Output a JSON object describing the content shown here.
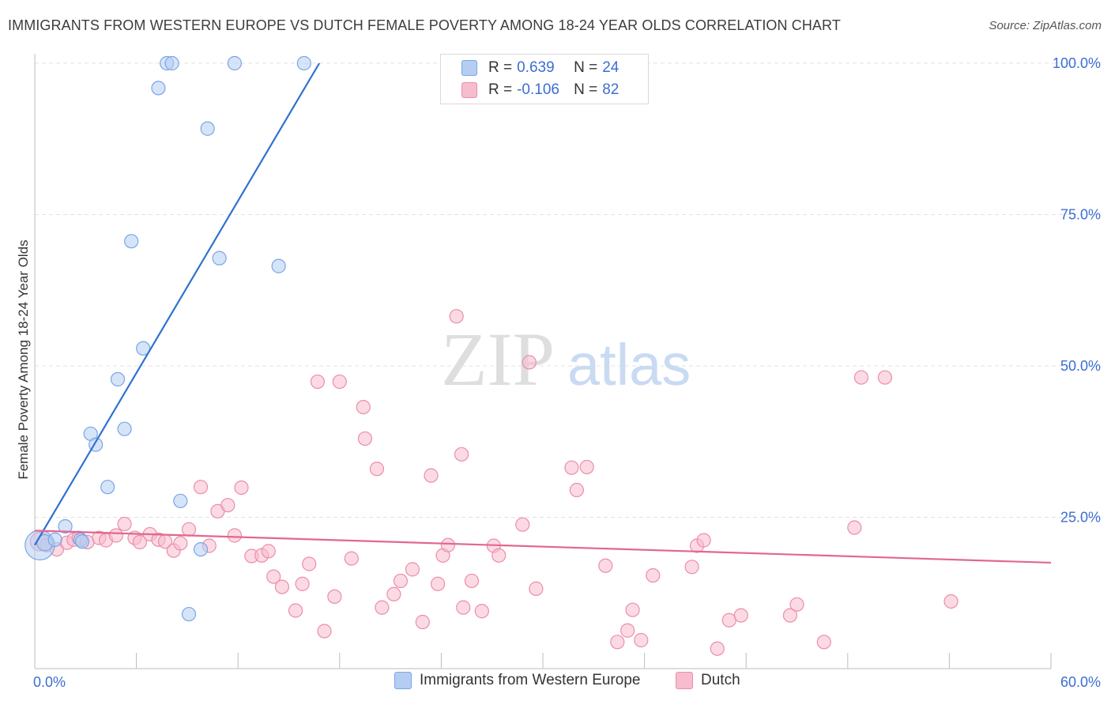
{
  "title": "IMMIGRANTS FROM WESTERN EUROPE VS DUTCH FEMALE POVERTY AMONG 18-24 YEAR OLDS CORRELATION CHART",
  "source": "Source: ZipAtlas.com",
  "watermark": {
    "zip": "ZIP",
    "atlas": "atlas"
  },
  "legend": {
    "series1": {
      "r_label": "R =",
      "r_value": "0.639",
      "n_label": "N =",
      "n_value": "24"
    },
    "series2": {
      "r_label": "R =",
      "r_value": "-0.106",
      "n_label": "N =",
      "n_value": "82"
    }
  },
  "colors": {
    "blue_fill": "#b5cdf3",
    "blue_stroke": "#7aa5e6",
    "blue_line": "#2f72cf",
    "pink_fill": "#f7bccd",
    "pink_stroke": "#ec8daa",
    "pink_line": "#e2678f",
    "axis_text": "#3b6fd0"
  },
  "chart_data": {
    "type": "scatter",
    "title": "IMMIGRANTS FROM WESTERN EUROPE VS DUTCH FEMALE POVERTY AMONG 18-24 YEAR OLDS CORRELATION CHART",
    "xlabel": "",
    "ylabel": "Female Poverty Among 18-24 Year Olds",
    "xlim": [
      0,
      60
    ],
    "ylim": [
      0,
      100
    ],
    "x_tick_labels": [
      "0.0%",
      "60.0%"
    ],
    "y_ticks": [
      {
        "value": 25,
        "label": "25.0%"
      },
      {
        "value": 50,
        "label": "50.0%"
      },
      {
        "value": 75,
        "label": "75.0%"
      },
      {
        "value": 100,
        "label": "100.0%"
      }
    ],
    "series": [
      {
        "name": "Immigrants from Western Europe",
        "color": "blue",
        "trend": {
          "x0": 0.0,
          "y0": 20.4,
          "x1": 16.8,
          "y1": 100.0
        },
        "points": [
          [
            0.3,
            20.4,
            22
          ],
          [
            0.6,
            20.8,
            12
          ],
          [
            1.2,
            21.3,
            10
          ],
          [
            1.8,
            23.5,
            10
          ],
          [
            2.7,
            21.3,
            10
          ],
          [
            2.8,
            21.0,
            10
          ],
          [
            3.3,
            38.8,
            10
          ],
          [
            3.6,
            37.0,
            10
          ],
          [
            4.3,
            30.0,
            10
          ],
          [
            4.9,
            47.8,
            10
          ],
          [
            5.3,
            39.6,
            10
          ],
          [
            5.7,
            70.6,
            10
          ],
          [
            6.4,
            52.9,
            10
          ],
          [
            7.3,
            95.9,
            10
          ],
          [
            7.8,
            100.0,
            10
          ],
          [
            8.1,
            100.0,
            10
          ],
          [
            8.6,
            27.7,
            10
          ],
          [
            9.1,
            9.0,
            10
          ],
          [
            9.8,
            19.7,
            10
          ],
          [
            10.2,
            89.2,
            10
          ],
          [
            10.9,
            67.8,
            10
          ],
          [
            11.8,
            100.0,
            10
          ],
          [
            14.4,
            66.5,
            10
          ],
          [
            15.9,
            100.0,
            10
          ]
        ]
      },
      {
        "name": "Dutch",
        "color": "pink",
        "trend": {
          "x0": 0.0,
          "y0": 22.8,
          "x1": 60.0,
          "y1": 17.5
        },
        "points": [
          [
            0.3,
            21.0,
            14
          ],
          [
            0.7,
            20.4,
            10
          ],
          [
            1.3,
            19.7,
            10
          ],
          [
            1.9,
            20.8,
            10
          ],
          [
            2.3,
            21.3,
            10
          ],
          [
            2.6,
            21.6,
            10
          ],
          [
            3.1,
            20.9,
            10
          ],
          [
            3.8,
            21.6,
            10
          ],
          [
            4.2,
            21.2,
            10
          ],
          [
            4.8,
            22.0,
            10
          ],
          [
            5.3,
            23.9,
            10
          ],
          [
            5.9,
            21.6,
            10
          ],
          [
            6.2,
            20.9,
            10
          ],
          [
            6.8,
            22.2,
            10
          ],
          [
            7.3,
            21.3,
            10
          ],
          [
            7.7,
            21.0,
            10
          ],
          [
            8.2,
            19.5,
            10
          ],
          [
            8.6,
            20.7,
            10
          ],
          [
            9.1,
            23.0,
            10
          ],
          [
            9.8,
            30.0,
            10
          ],
          [
            10.3,
            20.3,
            10
          ],
          [
            10.8,
            26.0,
            10
          ],
          [
            11.4,
            27.0,
            10
          ],
          [
            11.8,
            22.0,
            10
          ],
          [
            12.2,
            29.9,
            10
          ],
          [
            12.8,
            18.6,
            10
          ],
          [
            13.4,
            18.7,
            10
          ],
          [
            13.8,
            19.4,
            10
          ],
          [
            14.1,
            15.2,
            10
          ],
          [
            14.6,
            13.5,
            10
          ],
          [
            15.4,
            9.6,
            10
          ],
          [
            15.8,
            14.0,
            10
          ],
          [
            16.2,
            17.3,
            10
          ],
          [
            16.7,
            47.4,
            10
          ],
          [
            17.1,
            6.2,
            10
          ],
          [
            17.7,
            11.9,
            10
          ],
          [
            18.0,
            47.4,
            10
          ],
          [
            18.7,
            18.2,
            10
          ],
          [
            19.4,
            43.2,
            10
          ],
          [
            19.5,
            38.0,
            10
          ],
          [
            20.2,
            33.0,
            10
          ],
          [
            20.5,
            10.1,
            10
          ],
          [
            21.2,
            12.3,
            10
          ],
          [
            21.6,
            14.5,
            10
          ],
          [
            22.3,
            16.4,
            10
          ],
          [
            22.9,
            7.7,
            10
          ],
          [
            23.4,
            31.9,
            10
          ],
          [
            23.8,
            14.0,
            10
          ],
          [
            24.1,
            18.7,
            10
          ],
          [
            24.4,
            20.4,
            10
          ],
          [
            24.9,
            58.2,
            10
          ],
          [
            25.2,
            35.4,
            10
          ],
          [
            25.3,
            10.1,
            10
          ],
          [
            25.8,
            14.5,
            10
          ],
          [
            26.4,
            9.5,
            10
          ],
          [
            27.1,
            20.3,
            10
          ],
          [
            27.4,
            18.7,
            10
          ],
          [
            28.8,
            23.8,
            10
          ],
          [
            29.2,
            50.6,
            10
          ],
          [
            29.6,
            13.2,
            10
          ],
          [
            31.7,
            33.2,
            10
          ],
          [
            32.0,
            29.5,
            10
          ],
          [
            32.6,
            33.3,
            10
          ],
          [
            33.7,
            17.0,
            10
          ],
          [
            34.4,
            4.4,
            10
          ],
          [
            35.0,
            6.3,
            10
          ],
          [
            35.3,
            9.7,
            10
          ],
          [
            35.8,
            4.7,
            10
          ],
          [
            36.5,
            15.4,
            10
          ],
          [
            38.8,
            16.8,
            10
          ],
          [
            39.1,
            20.3,
            10
          ],
          [
            39.5,
            21.2,
            10
          ],
          [
            40.3,
            3.3,
            10
          ],
          [
            41.0,
            8.0,
            10
          ],
          [
            41.7,
            8.8,
            10
          ],
          [
            44.6,
            8.8,
            10
          ],
          [
            45.0,
            10.6,
            10
          ],
          [
            46.6,
            4.4,
            10
          ],
          [
            48.4,
            23.3,
            10
          ],
          [
            48.8,
            48.1,
            10
          ],
          [
            50.2,
            48.1,
            10
          ],
          [
            54.1,
            11.1,
            10
          ]
        ]
      }
    ],
    "legend_entries": [
      "Immigrants from Western Europe",
      "Dutch"
    ]
  }
}
